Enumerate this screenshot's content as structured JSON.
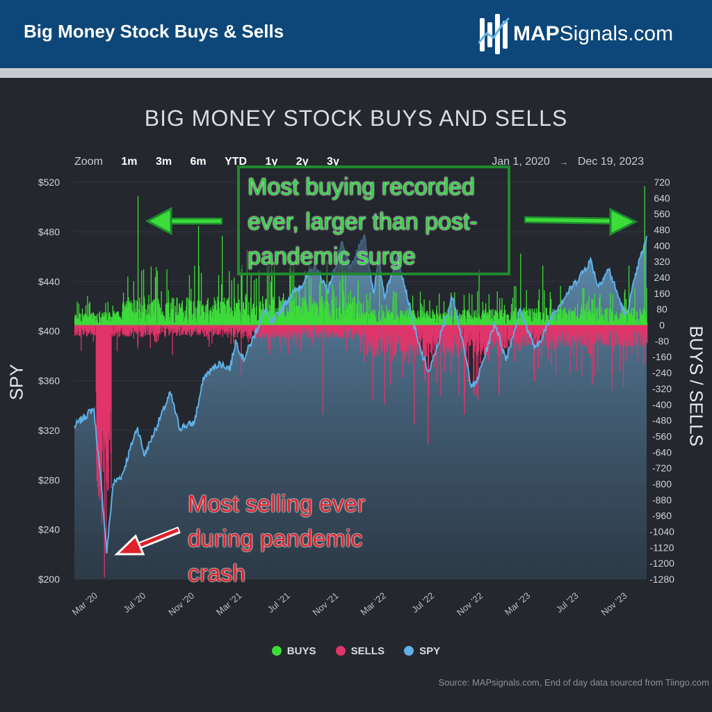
{
  "header": {
    "title": "Big Money Stock Buys & Sells",
    "logo_bold": "MAP",
    "logo_rest": "Signals.com"
  },
  "zoom": {
    "label": "Zoom",
    "buttons": [
      "1m",
      "3m",
      "6m",
      "YTD",
      "1y",
      "2y",
      "3y"
    ]
  },
  "date_range": {
    "start": "Jan 1, 2020",
    "arrow": "→",
    "end": "Dec 19, 2023"
  },
  "annotations": {
    "top": "Most buying recorded ever, larger than post-pandemic surge",
    "bottom": "Most selling ever during pandemic crash"
  },
  "legend": {
    "buys": "BUYS",
    "sells": "SELLS",
    "spy": "SPY"
  },
  "source": "Source: MAPsignals.com, End of day data sourced from Tiingo.com",
  "colors": {
    "header_bg": "#0d4779",
    "background": "#24272d",
    "buys": "#3ddc3a",
    "sells": "#e0356a",
    "spy": "#5fb0e6",
    "annotation_green": "#2fd33f",
    "annotation_red": "#e0202a"
  },
  "chart_data": {
    "type": "bar",
    "title": "BIG MONEY STOCK BUYS AND SELLS",
    "left_axis": {
      "label": "SPY",
      "range": [
        200,
        520
      ],
      "ticks": [
        "$200",
        "$240",
        "$280",
        "$320",
        "$360",
        "$400",
        "$440",
        "$480",
        "$520"
      ],
      "tick_values": [
        200,
        240,
        280,
        320,
        360,
        400,
        440,
        480,
        520
      ]
    },
    "right_axis": {
      "label": "BUYS / SELLS",
      "range": [
        -1280,
        720
      ],
      "ticks": [
        "720",
        "640",
        "560",
        "480",
        "400",
        "320",
        "240",
        "160",
        "80",
        "0",
        "-80",
        "-160",
        "-240",
        "-320",
        "-400",
        "-480",
        "-560",
        "-640",
        "-720",
        "-800",
        "-880",
        "-960",
        "-1040",
        "-1120",
        "-1200",
        "-1280"
      ],
      "tick_values": [
        720,
        640,
        560,
        480,
        400,
        320,
        240,
        160,
        80,
        0,
        -80,
        -160,
        -240,
        -320,
        -400,
        -480,
        -560,
        -640,
        -720,
        -800,
        -880,
        -960,
        -1040,
        -1120,
        -1200,
        -1280
      ]
    },
    "x_axis": {
      "tick_labels": [
        "Mar '20",
        "Jul '20",
        "Nov '20",
        "Mar '21",
        "Jul '21",
        "Nov '21",
        "Mar '22",
        "Jul '22",
        "Nov '22",
        "Mar '23",
        "Jul '23",
        "Nov '23"
      ],
      "tick_dates": [
        "2020-03-01",
        "2020-07-01",
        "2020-11-01",
        "2021-03-01",
        "2021-07-01",
        "2021-11-01",
        "2022-03-01",
        "2022-07-01",
        "2022-11-01",
        "2023-03-01",
        "2023-07-01",
        "2023-11-01"
      ],
      "range": [
        "2020-01-01",
        "2023-12-19"
      ]
    },
    "series": [
      {
        "name": "SPY",
        "kind": "area",
        "axis": "left",
        "points": [
          [
            "2020-01-01",
            323
          ],
          [
            "2020-02-19",
            338
          ],
          [
            "2020-03-09",
            275
          ],
          [
            "2020-03-23",
            222
          ],
          [
            "2020-04-08",
            277
          ],
          [
            "2020-05-01",
            284
          ],
          [
            "2020-06-08",
            323
          ],
          [
            "2020-06-26",
            300
          ],
          [
            "2020-07-31",
            326
          ],
          [
            "2020-08-31",
            350
          ],
          [
            "2020-09-23",
            322
          ],
          [
            "2020-10-30",
            326
          ],
          [
            "2020-11-24",
            363
          ],
          [
            "2020-12-31",
            374
          ],
          [
            "2021-01-29",
            370
          ],
          [
            "2021-02-12",
            392
          ],
          [
            "2021-03-04",
            377
          ],
          [
            "2021-04-30",
            418
          ],
          [
            "2021-05-12",
            405
          ],
          [
            "2021-06-30",
            428
          ],
          [
            "2021-07-30",
            438
          ],
          [
            "2021-08-31",
            452
          ],
          [
            "2021-10-04",
            433
          ],
          [
            "2021-11-08",
            470
          ],
          [
            "2021-12-01",
            450
          ],
          [
            "2022-01-03",
            478
          ],
          [
            "2022-01-27",
            431
          ],
          [
            "2022-02-09",
            457
          ],
          [
            "2022-02-24",
            428
          ],
          [
            "2022-03-29",
            461
          ],
          [
            "2022-05-20",
            390
          ],
          [
            "2022-06-16",
            366
          ],
          [
            "2022-08-16",
            429
          ],
          [
            "2022-09-30",
            358
          ],
          [
            "2022-10-12",
            356
          ],
          [
            "2022-11-30",
            407
          ],
          [
            "2022-12-28",
            377
          ],
          [
            "2023-02-02",
            417
          ],
          [
            "2023-03-13",
            385
          ],
          [
            "2023-04-28",
            415
          ],
          [
            "2023-06-30",
            443
          ],
          [
            "2023-07-31",
            457
          ],
          [
            "2023-08-18",
            436
          ],
          [
            "2023-09-14",
            450
          ],
          [
            "2023-10-27",
            411
          ],
          [
            "2023-11-30",
            456
          ],
          [
            "2023-12-19",
            474
          ]
        ]
      },
      {
        "name": "BUYS",
        "kind": "bar",
        "axis": "right",
        "notable": [
          [
            "2020-06-09",
            650
          ],
          [
            "2020-11-09",
            500
          ],
          [
            "2021-01-08",
            450
          ],
          [
            "2021-03-12",
            380
          ],
          [
            "2021-11-08",
            420
          ],
          [
            "2022-02-10",
            360
          ],
          [
            "2022-10-20",
            280
          ],
          [
            "2023-02-02",
            360
          ],
          [
            "2023-03-30",
            300
          ],
          [
            "2023-11-03",
            300
          ],
          [
            "2023-12-13",
            700
          ]
        ]
      },
      {
        "name": "SELLS",
        "kind": "bar",
        "axis": "right",
        "notable": [
          [
            "2020-02-25",
            -700
          ],
          [
            "2020-03-09",
            -1000
          ],
          [
            "2020-03-16",
            -1270
          ],
          [
            "2020-03-20",
            -1150
          ],
          [
            "2020-09-04",
            -150
          ],
          [
            "2021-02-25",
            -250
          ],
          [
            "2021-09-20",
            -450
          ],
          [
            "2022-01-24",
            -380
          ],
          [
            "2022-02-23",
            -400
          ],
          [
            "2022-05-09",
            -500
          ],
          [
            "2022-06-13",
            -600
          ],
          [
            "2022-08-30",
            -350
          ],
          [
            "2022-09-13",
            -450
          ],
          [
            "2022-10-07",
            -350
          ],
          [
            "2022-12-15",
            -220
          ],
          [
            "2023-03-09",
            -280
          ],
          [
            "2023-08-02",
            -300
          ],
          [
            "2023-09-21",
            -330
          ],
          [
            "2023-10-20",
            -310
          ]
        ]
      }
    ],
    "grid": true,
    "legend_position": "bottom-center"
  }
}
